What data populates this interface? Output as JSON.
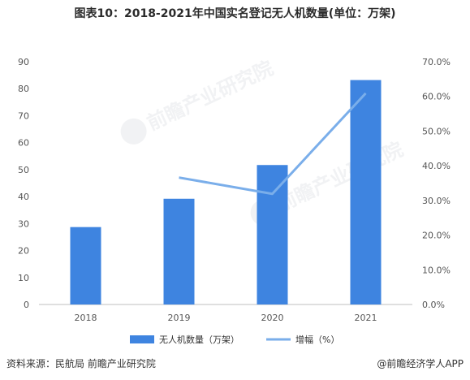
{
  "title": "图表10：2018-2021年中国实名登记无人机数量(单位：万架)",
  "source": "资料来源：民航局 前瞻产业研究院",
  "brand": "@前瞻经济学人APP",
  "watermark": "前瞻产业研究院",
  "colors": {
    "bar": "#3e84e0",
    "line": "#7aaeea"
  },
  "chart_data": {
    "type": "bar",
    "categories": [
      "2018",
      "2019",
      "2020",
      "2021"
    ],
    "series": [
      {
        "name": "无人机数量（万架）",
        "type": "bar",
        "axis": "left",
        "values": [
          28.7,
          39.2,
          51.7,
          83.2
        ]
      },
      {
        "name": "增幅（%）",
        "type": "line",
        "axis": "right",
        "values": [
          null,
          36.6,
          31.9,
          60.9
        ]
      }
    ],
    "y_left": {
      "min": 0,
      "max": 90,
      "ticks": [
        "0",
        "10",
        "20",
        "30",
        "40",
        "50",
        "60",
        "70",
        "80",
        "90"
      ]
    },
    "y_right": {
      "min": 0,
      "max": 70,
      "ticks": [
        "0.0%",
        "10.0%",
        "20.0%",
        "30.0%",
        "40.0%",
        "50.0%",
        "60.0%",
        "70.0%"
      ]
    },
    "legend_position": "bottom",
    "grid": false
  }
}
